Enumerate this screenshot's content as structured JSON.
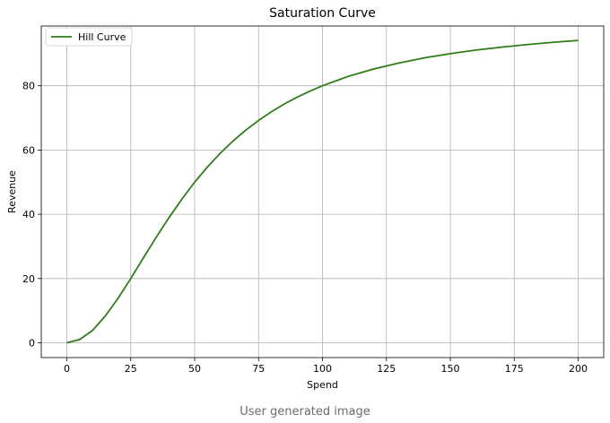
{
  "caption": "User generated image",
  "chart_data": {
    "type": "line",
    "title": "Saturation Curve",
    "xlabel": "Spend",
    "ylabel": "Revenue",
    "xlim": [
      -10,
      210
    ],
    "ylim": [
      -4.6,
      98.6
    ],
    "xticks": [
      0,
      25,
      50,
      75,
      100,
      125,
      150,
      175,
      200
    ],
    "yticks": [
      0,
      20,
      40,
      60,
      80
    ],
    "grid": true,
    "legend_position": "top-left",
    "series": [
      {
        "name": "Hill Curve",
        "color": "#2e7d1a",
        "x": [
          0,
          5,
          10,
          15,
          20,
          25,
          30,
          35,
          40,
          45,
          50,
          55,
          60,
          65,
          70,
          75,
          80,
          85,
          90,
          95,
          100,
          110,
          120,
          130,
          140,
          150,
          160,
          170,
          180,
          190,
          200
        ],
        "y": [
          0,
          1.0,
          3.8,
          8.3,
          13.8,
          20.0,
          26.5,
          32.9,
          39.0,
          44.7,
          50.0,
          54.7,
          59.0,
          62.8,
          66.2,
          69.2,
          71.9,
          74.3,
          76.4,
          78.3,
          80.0,
          82.9,
          85.2,
          87.1,
          88.7,
          90.0,
          91.1,
          92.0,
          92.8,
          93.5,
          94.1
        ]
      }
    ]
  }
}
